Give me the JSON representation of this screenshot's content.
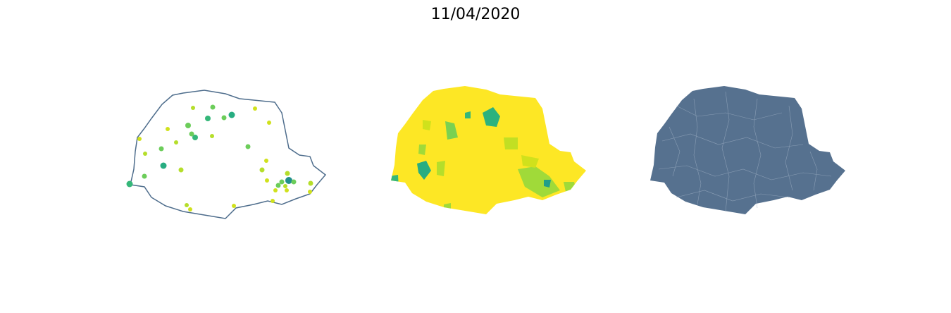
{
  "title": "11/04/2020"
}
